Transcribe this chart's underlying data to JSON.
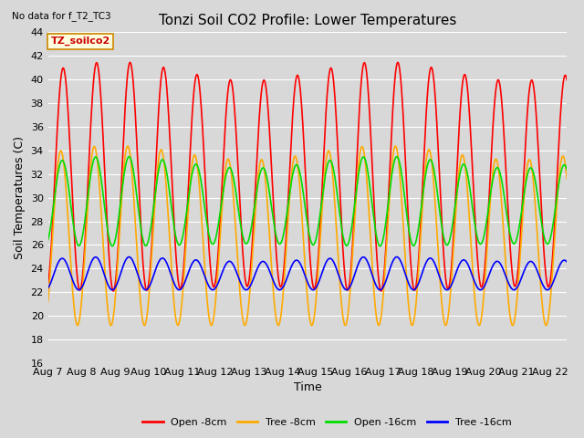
{
  "title": "Tonzi Soil CO2 Profile: Lower Temperatures",
  "subtitle": "No data for f_T2_TC3",
  "xlabel": "Time",
  "ylabel": "Soil Temperatures (C)",
  "ylim": [
    16,
    44
  ],
  "yticks": [
    16,
    18,
    20,
    22,
    24,
    26,
    28,
    30,
    32,
    34,
    36,
    38,
    40,
    42,
    44
  ],
  "xtick_labels": [
    "Aug 7",
    "Aug 8",
    "Aug 9",
    "Aug 10",
    "Aug 11",
    "Aug 12",
    "Aug 13",
    "Aug 14",
    "Aug 15",
    "Aug 16",
    "Aug 17",
    "Aug 18",
    "Aug 19",
    "Aug 20",
    "Aug 21",
    "Aug 22"
  ],
  "n_days": 15.5,
  "points_per_day": 96,
  "series": [
    {
      "label": "Open -8cm",
      "color": "#ff0000"
    },
    {
      "label": "Tree -8cm",
      "color": "#ffaa00"
    },
    {
      "label": "Open -16cm",
      "color": "#00dd00"
    },
    {
      "label": "Tree -16cm",
      "color": "#0000ff"
    }
  ],
  "legend_label": "TZ_soilco2",
  "background_color": "#d8d8d8",
  "plot_bg_color": "#d8d8d8",
  "grid_color": "#ffffff",
  "linewidth": 1.2,
  "title_fontsize": 11,
  "label_fontsize": 9,
  "tick_fontsize": 8
}
